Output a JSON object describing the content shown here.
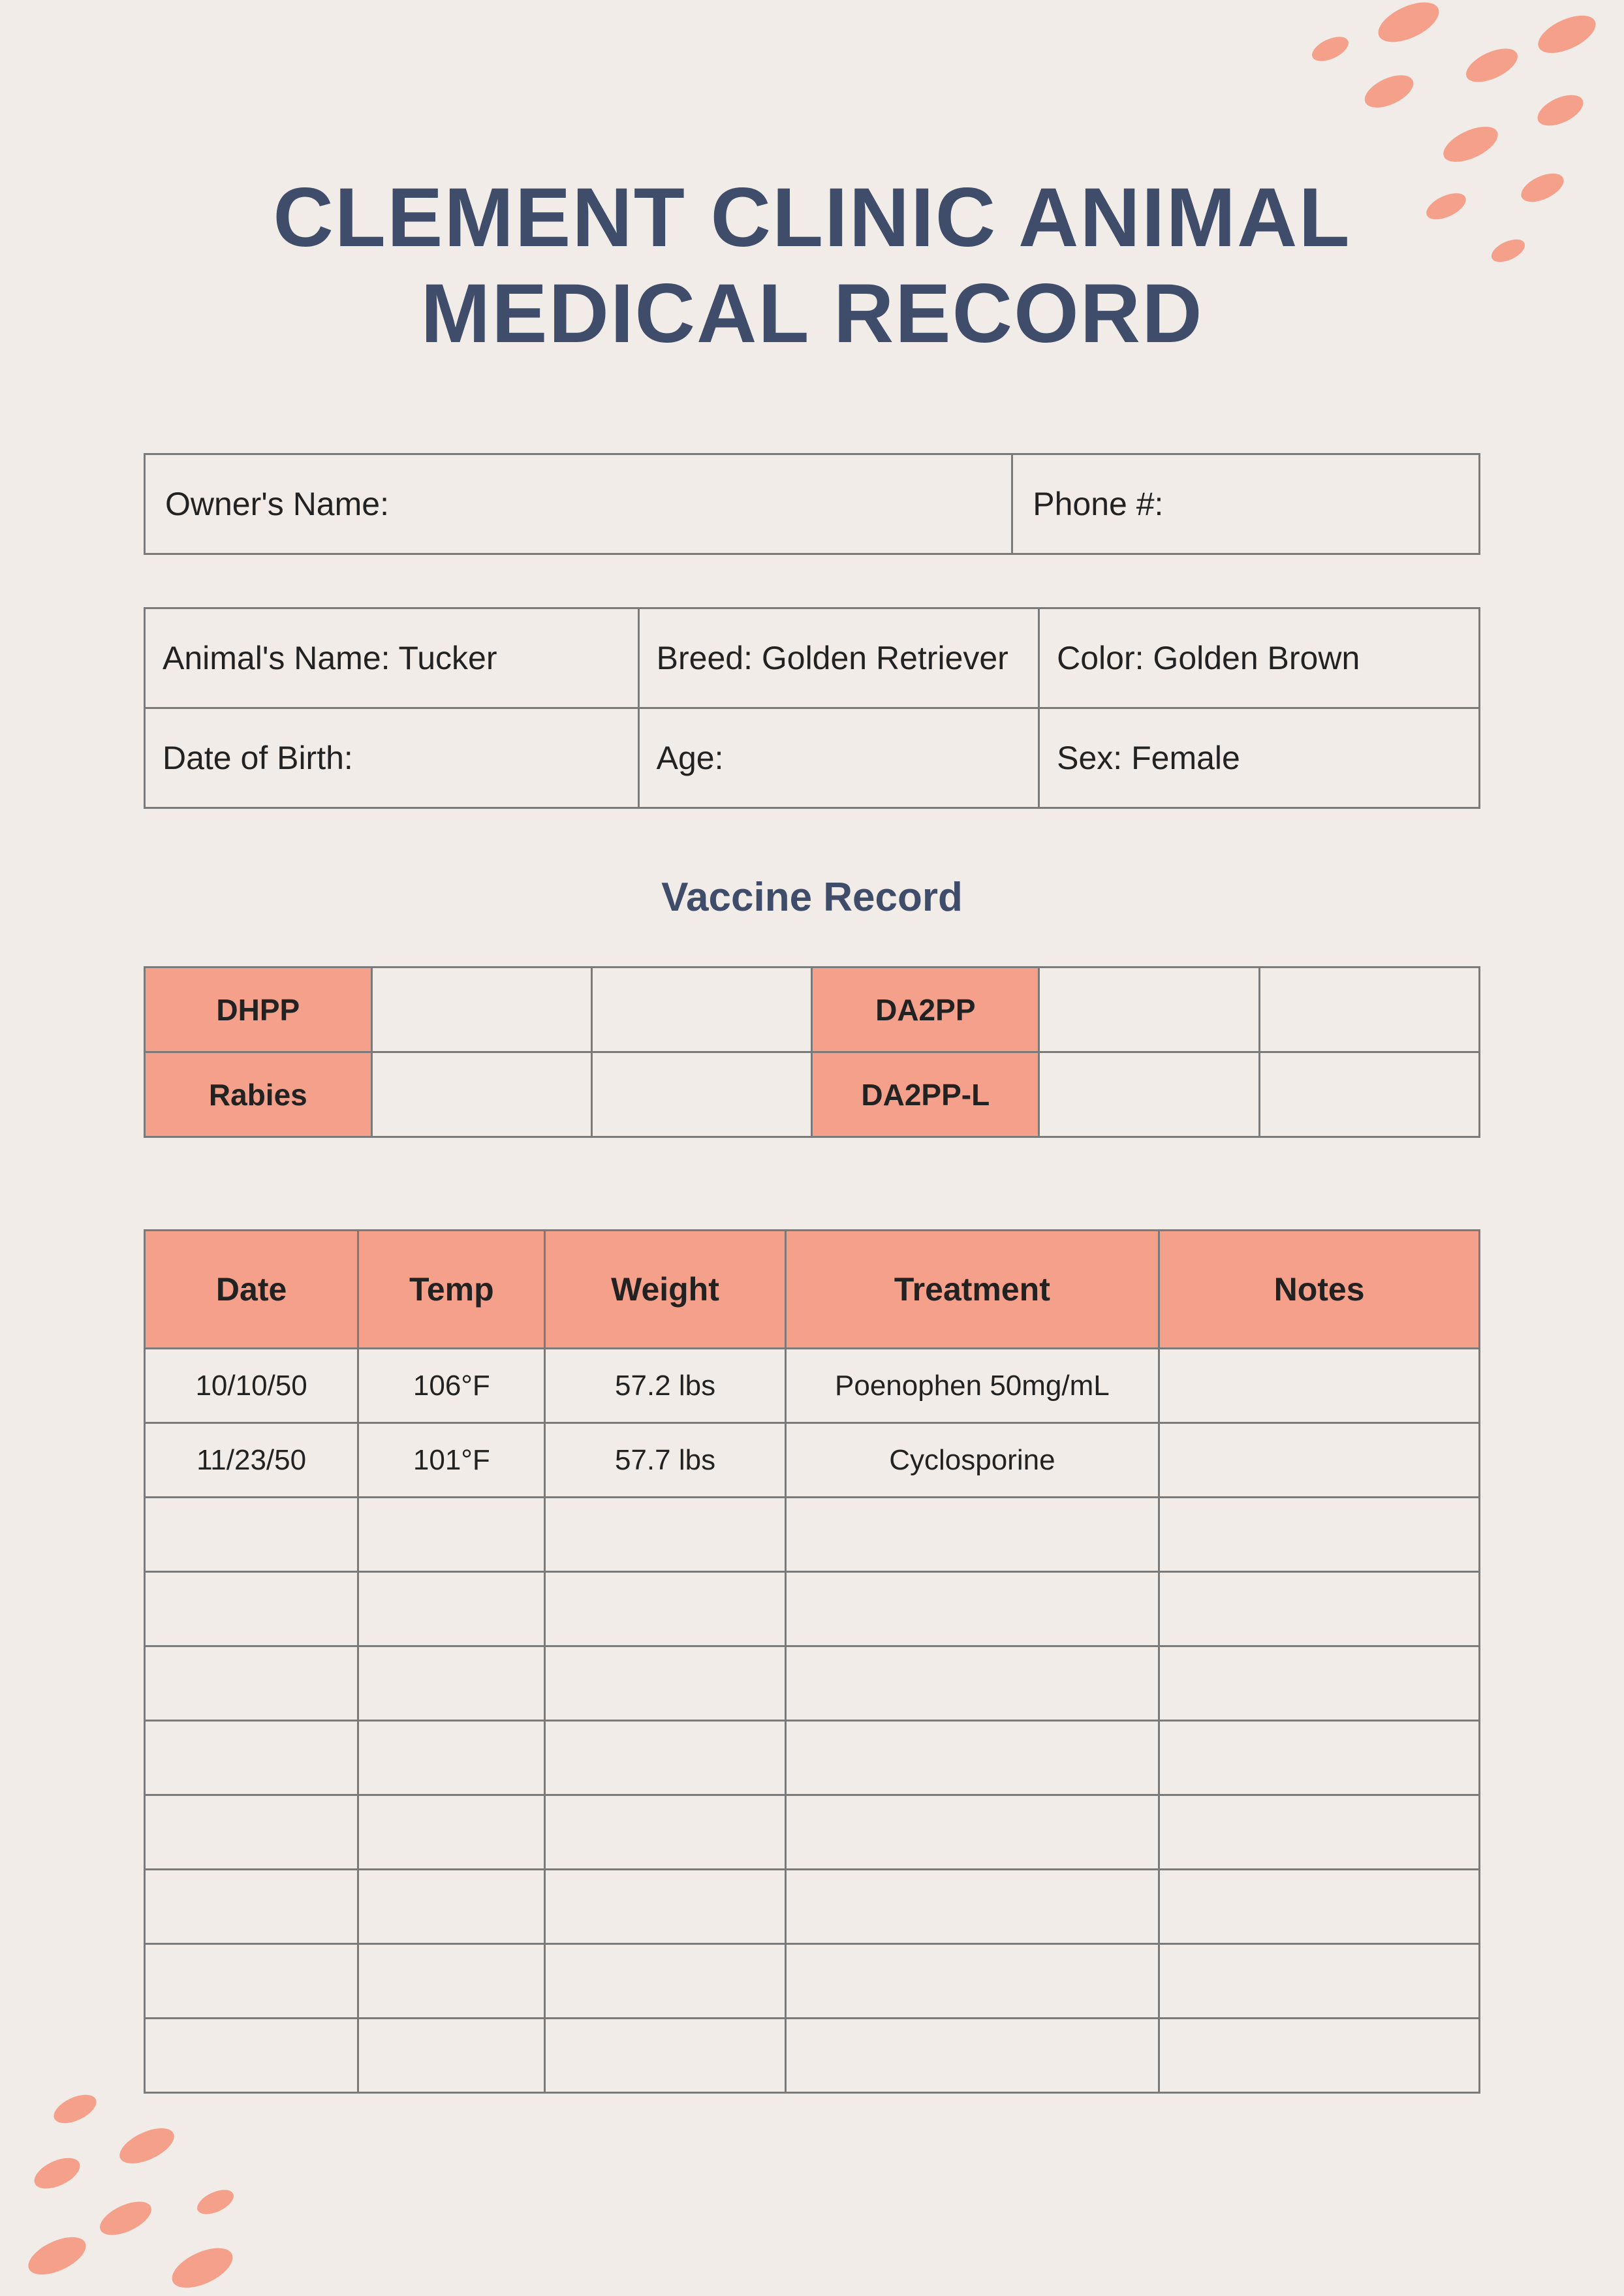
{
  "title": "CLEMENT CLINIC ANIMAL MEDICAL RECORD",
  "colors": {
    "background": "#f2ece8",
    "accent": "#f4a08a",
    "heading": "#3f4d6a",
    "border": "#7a7a7a",
    "text": "#222222"
  },
  "owner": {
    "name_label": "Owner's Name:",
    "name_value": "",
    "phone_label": "Phone #:",
    "phone_value": ""
  },
  "animal": {
    "name_label": "Animal's Name:",
    "name_value": "Tucker",
    "breed_label": "Breed:",
    "breed_value": "Golden Retriever",
    "color_label": "Color:",
    "color_value": "Golden Brown",
    "dob_label": "Date of Birth:",
    "dob_value": "",
    "age_label": "Age:",
    "age_value": "",
    "sex_label": "Sex:",
    "sex_value": "Female"
  },
  "vaccine": {
    "section_title": "Vaccine Record",
    "rows": [
      {
        "left": "DHPP",
        "right": "DA2PP"
      },
      {
        "left": "Rabies",
        "right": "DA2PP-L"
      }
    ]
  },
  "records": {
    "columns": [
      "Date",
      "Temp",
      "Weight",
      "Treatment",
      "Notes"
    ],
    "column_widths": [
      "16%",
      "14%",
      "18%",
      "28%",
      "24%"
    ],
    "rows": [
      {
        "date": "10/10/50",
        "temp": "106°F",
        "weight": "57.2 lbs",
        "treatment": "Poenophen 50mg/mL",
        "notes": ""
      },
      {
        "date": "11/23/50",
        "temp": "101°F",
        "weight": "57.7 lbs",
        "treatment": "Cyclosporine",
        "notes": ""
      },
      {
        "date": "",
        "temp": "",
        "weight": "",
        "treatment": "",
        "notes": ""
      },
      {
        "date": "",
        "temp": "",
        "weight": "",
        "treatment": "",
        "notes": ""
      },
      {
        "date": "",
        "temp": "",
        "weight": "",
        "treatment": "",
        "notes": ""
      },
      {
        "date": "",
        "temp": "",
        "weight": "",
        "treatment": "",
        "notes": ""
      },
      {
        "date": "",
        "temp": "",
        "weight": "",
        "treatment": "",
        "notes": ""
      },
      {
        "date": "",
        "temp": "",
        "weight": "",
        "treatment": "",
        "notes": ""
      },
      {
        "date": "",
        "temp": "",
        "weight": "",
        "treatment": "",
        "notes": ""
      },
      {
        "date": "",
        "temp": "",
        "weight": "",
        "treatment": "",
        "notes": ""
      }
    ]
  }
}
